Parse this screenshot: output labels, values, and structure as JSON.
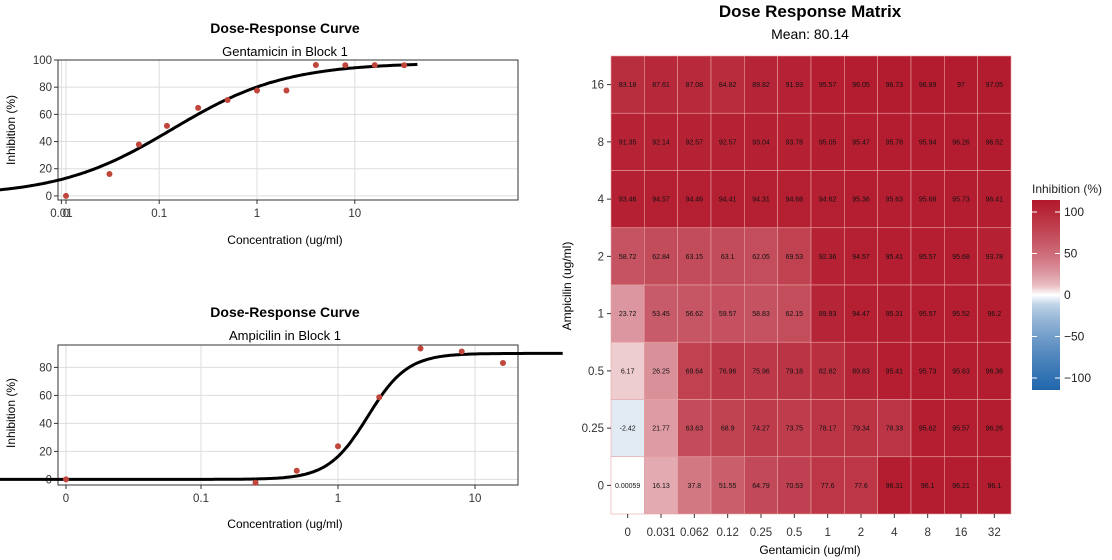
{
  "colors": {
    "point": "#c0453a",
    "curve": "#000000",
    "grid": "#dddddd",
    "heat_high": "#b2182b",
    "heat_mid": "#ffffff",
    "heat_low": "#2166ac",
    "heat_grid": "#e6a3a3"
  },
  "chart_data": [
    {
      "type": "scatter",
      "title": "Dose-Response Curve",
      "subtitle": "Gentamicin in Block 1",
      "xlabel": "Concentration (ug/ml)",
      "ylabel": "Inhibition (%)",
      "x_scale": "log",
      "xticks": [
        "0",
        "0.01",
        "0.1",
        "1",
        "10"
      ],
      "yticks": [
        "0",
        "20",
        "40",
        "60",
        "80",
        "100"
      ],
      "ylim": [
        -3,
        100
      ],
      "points": [
        {
          "x": 0,
          "y": 0.0006
        },
        {
          "x": 0.031,
          "y": 16.13
        },
        {
          "x": 0.062,
          "y": 37.8
        },
        {
          "x": 0.12,
          "y": 51.55
        },
        {
          "x": 0.25,
          "y": 64.79
        },
        {
          "x": 0.5,
          "y": 70.53
        },
        {
          "x": 1,
          "y": 77.6
        },
        {
          "x": 2,
          "y": 77.6
        },
        {
          "x": 4,
          "y": 96.31
        },
        {
          "x": 8,
          "y": 96.1
        },
        {
          "x": 16,
          "y": 96.21
        },
        {
          "x": 32,
          "y": 96.1
        }
      ],
      "curve": {
        "bottom": 0,
        "top": 98,
        "ic50": 0.135,
        "hill": 0.75
      },
      "grid": true
    },
    {
      "type": "scatter",
      "title": "Dose-Response Curve",
      "subtitle": "Ampicilin in Block 1",
      "xlabel": "Concentration (ug/ml)",
      "ylabel": "Inhibition (%)",
      "x_scale": "log",
      "xticks": [
        "0",
        "0.1",
        "1",
        "10"
      ],
      "yticks": [
        "0",
        "20",
        "40",
        "60",
        "80"
      ],
      "ylim": [
        -4,
        96
      ],
      "points": [
        {
          "x": 0,
          "y": 0.0006
        },
        {
          "x": 0.25,
          "y": -2.42
        },
        {
          "x": 0.5,
          "y": 6.17
        },
        {
          "x": 1,
          "y": 23.72
        },
        {
          "x": 2,
          "y": 58.72
        },
        {
          "x": 4,
          "y": 93.46
        },
        {
          "x": 8,
          "y": 91.35
        },
        {
          "x": 16,
          "y": 83.18
        }
      ],
      "curve": {
        "bottom": 0,
        "top": 90,
        "ic50": 1.65,
        "hill": 3.0
      },
      "grid": true
    },
    {
      "type": "heatmap",
      "title": "Dose Response Matrix",
      "subtitle": "Mean: 80.14",
      "xlabel": "Gentamicin (ug/ml)",
      "ylabel": "Ampicilin (ug/ml)",
      "x": [
        "0",
        "0.031",
        "0.062",
        "0.12",
        "0.25",
        "0.5",
        "1",
        "2",
        "4",
        "8",
        "16",
        "32"
      ],
      "y": [
        "16",
        "8",
        "4",
        "2",
        "1",
        "0.5",
        "0.25",
        "0"
      ],
      "values": [
        [
          83.18,
          87.61,
          87.08,
          84.82,
          89.82,
          91.93,
          95.57,
          96.05,
          96.73,
          96.89,
          97,
          97.05
        ],
        [
          91.35,
          92.14,
          92.57,
          92.57,
          93.04,
          93.78,
          95.05,
          95.47,
          95.78,
          95.94,
          96.26,
          96.52
        ],
        [
          93.46,
          94.57,
          94.46,
          94.41,
          94.31,
          94.68,
          94.62,
          95.36,
          95.63,
          95.68,
          95.73,
          96.41
        ],
        [
          58.72,
          62.84,
          63.15,
          63.1,
          62.05,
          69.53,
          92.36,
          94.57,
          95.41,
          95.57,
          95.68,
          93.78
        ],
        [
          23.72,
          53.45,
          56.62,
          59.57,
          58.83,
          62.15,
          89.93,
          94.47,
          95.31,
          95.57,
          95.52,
          96.2
        ],
        [
          6.17,
          26.25,
          69.64,
          76.96,
          75.96,
          79.18,
          82.82,
          89.83,
          95.41,
          95.73,
          95.63,
          96.36
        ],
        [
          -2.42,
          21.77,
          63.63,
          68.9,
          74.27,
          73.75,
          78.17,
          79.34,
          78.33,
          95.62,
          95.57,
          96.26
        ],
        [
          0.00059,
          16.13,
          37.8,
          51.55,
          64.79,
          70.53,
          77.6,
          77.6,
          96.31,
          96.1,
          96.21,
          96.1
        ]
      ],
      "labels": [
        [
          "83.18",
          "87.61",
          "87.08",
          "84.82",
          "89.82",
          "91.93",
          "95.57",
          "96.05",
          "96.73",
          "96.89",
          "97",
          "97.05"
        ],
        [
          "91.35",
          "92.14",
          "92.57",
          "92.57",
          "93.04",
          "93.78",
          "95.05",
          "95.47",
          "95.78",
          "95.94",
          "96.26",
          "96.52"
        ],
        [
          "93.46",
          "94.57",
          "94.46",
          "94.41",
          "94.31",
          "94.68",
          "94.62",
          "95.36",
          "95.63",
          "95.68",
          "95.73",
          "96.41"
        ],
        [
          "58.72",
          "62.84",
          "63.15",
          "63.1",
          "62.05",
          "69.53",
          "92.36",
          "94.57",
          "95.41",
          "95.57",
          "95.68",
          "93.78"
        ],
        [
          "23.72",
          "53.45",
          "56.62",
          "59.57",
          "58.83",
          "62.15",
          "89.93",
          "94.47",
          "95.31",
          "95.57",
          "95.52",
          "96.2"
        ],
        [
          "6.17",
          "26.25",
          "69.64",
          "76.96",
          "75.96",
          "79.18",
          "82.82",
          "89.83",
          "95.41",
          "95.73",
          "95.63",
          "96.36"
        ],
        [
          "-2.42",
          "21.77",
          "63.63",
          "68.9",
          "74.27",
          "73.75",
          "78.17",
          "79.34",
          "78.33",
          "95.62",
          "95.57",
          "96.26"
        ],
        [
          "0.00059",
          "16.13",
          "37.8",
          "51.55",
          "64.79",
          "70.53",
          "77.6",
          "77.6",
          "96.31",
          "96.1",
          "96.21",
          "96.1"
        ]
      ],
      "color_range": [
        -100,
        100
      ],
      "legend": {
        "title": "Inhibition (%)",
        "ticks": [
          "100",
          "50",
          "0",
          "−50",
          "−100"
        ],
        "tick_values": [
          100,
          50,
          0,
          -50,
          -100
        ],
        "placement": "right"
      }
    }
  ]
}
